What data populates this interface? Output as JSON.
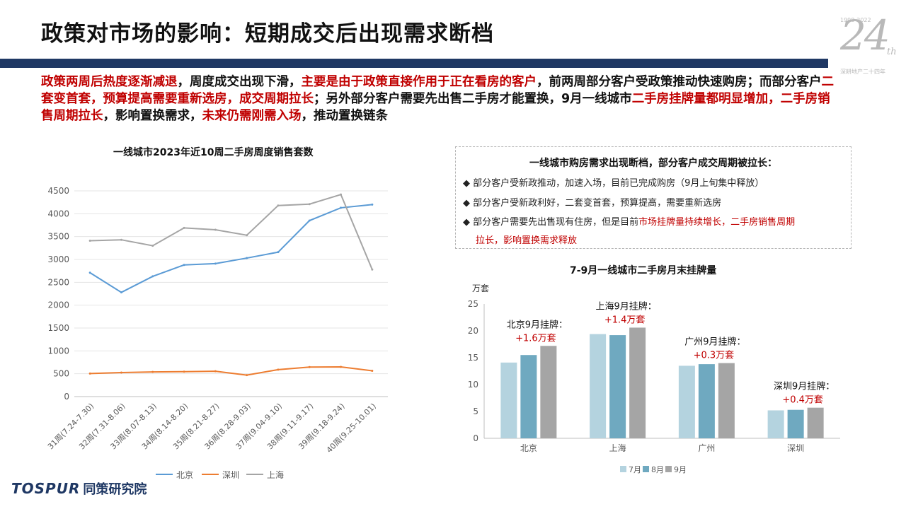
{
  "header": {
    "title": "政策对市场的影响：短期成交后出现需求断档",
    "anniv_number": "24",
    "anniv_suffix": "th",
    "anniv_years": "1998-2022",
    "anniv_sub": "深耕地产二十四年"
  },
  "intro": {
    "segments": [
      {
        "text": "政策两周后热度逐渐减退",
        "red": true
      },
      {
        "text": "，周度成交出现下滑，",
        "red": false
      },
      {
        "text": "主要是由于政策直接作用于正在看房的客户",
        "red": true
      },
      {
        "text": "，前两周部分客户受政策推动快速购房；而部分客户",
        "red": false
      },
      {
        "text": "二套变首套，预算提高需要重新选房，成交周期拉长",
        "red": true
      },
      {
        "text": "；另外部分客户需要先出售二手房才能置换，9月一线城市",
        "red": false
      },
      {
        "text": "二手房挂牌量都明显增加，二手房销售周期拉长",
        "red": true
      },
      {
        "text": "，影响置换需求，",
        "red": false
      },
      {
        "text": "未来仍需刚需入场",
        "red": true
      },
      {
        "text": "，推动置换链条",
        "red": false
      }
    ]
  },
  "line_chart_title": "一线城市2023年近10周二手房周度销售套数",
  "bar_chart_title": "7-9月一线城市二手房月末挂牌量",
  "info_box": {
    "title": "一线城市购房需求出现断档，部分客户成交周期被拉长：",
    "bullet": "◆",
    "item1": "部分客户受新政推动，加速入场，目前已完成购房（9月上旬集中释放）",
    "item2": "部分客户受新政利好，二套变首套，预算提高，需要重新选房",
    "item3_black": "部分客户需要先出售现有住房，但是目前",
    "item3_red": "市场挂牌量持续增长，二手房销售周期",
    "item3_red2": "拉长，影响置换需求释放"
  },
  "footer": {
    "brand": "TOSPUR",
    "org": "同策研究院"
  },
  "chart_data": [
    {
      "type": "line",
      "title": "一线城市2023年近10周二手房周度销售套数",
      "categories": [
        "31周(7.24-7.30)",
        "32周(7.31-8.06)",
        "33周(8.07-8.13)",
        "34周(8.14-8.20)",
        "35周(8.21-8.27)",
        "36周(8.28-9.03)",
        "37周(9.04-9.10)",
        "38周(9.11-9.17)",
        "39周(9.18-9.24)",
        "40周(9.25-10.01)"
      ],
      "yticks": [
        "0",
        "500",
        "1000",
        "1500",
        "2000",
        "2500",
        "3000",
        "3500",
        "4000",
        "4500"
      ],
      "ylim": [
        0,
        4500
      ],
      "series": [
        {
          "name": "北京",
          "color": "#5b9bd5",
          "values": [
            2710,
            2280,
            2630,
            2880,
            2910,
            3030,
            3160,
            3850,
            4130,
            4200
          ]
        },
        {
          "name": "深圳",
          "color": "#ed7d31",
          "values": [
            505,
            525,
            540,
            545,
            555,
            470,
            590,
            645,
            650,
            565
          ]
        },
        {
          "name": "上海",
          "color": "#a5a5a5",
          "values": [
            3410,
            3430,
            3300,
            3690,
            3650,
            3530,
            4180,
            4210,
            4420,
            2780
          ]
        }
      ]
    },
    {
      "type": "bar",
      "title": "7-9月一线城市二手房月末挂牌量",
      "ylabel": "万套",
      "categories": [
        "北京",
        "上海",
        "广州",
        "深圳"
      ],
      "yticks": [
        "0",
        "5",
        "10",
        "15",
        "20",
        "25"
      ],
      "ylim": [
        0,
        25
      ],
      "series": [
        {
          "name": "7月",
          "color": "#b4d3df",
          "values": [
            14.1,
            19.4,
            13.5,
            5.2
          ]
        },
        {
          "name": "8月",
          "color": "#6fa9c0",
          "values": [
            15.5,
            19.2,
            13.8,
            5.3
          ]
        },
        {
          "name": "9月",
          "color": "#a5a5a5",
          "values": [
            17.2,
            20.6,
            14.0,
            5.7
          ]
        }
      ],
      "annotations": [
        {
          "label": "北京9月挂牌：",
          "value": "+1.6万套"
        },
        {
          "label": "上海9月挂牌：",
          "value": "+1.4万套"
        },
        {
          "label": "广州9月挂牌：",
          "value": "+0.3万套"
        },
        {
          "label": "深圳9月挂牌：",
          "value": "+0.4万套"
        }
      ]
    }
  ]
}
